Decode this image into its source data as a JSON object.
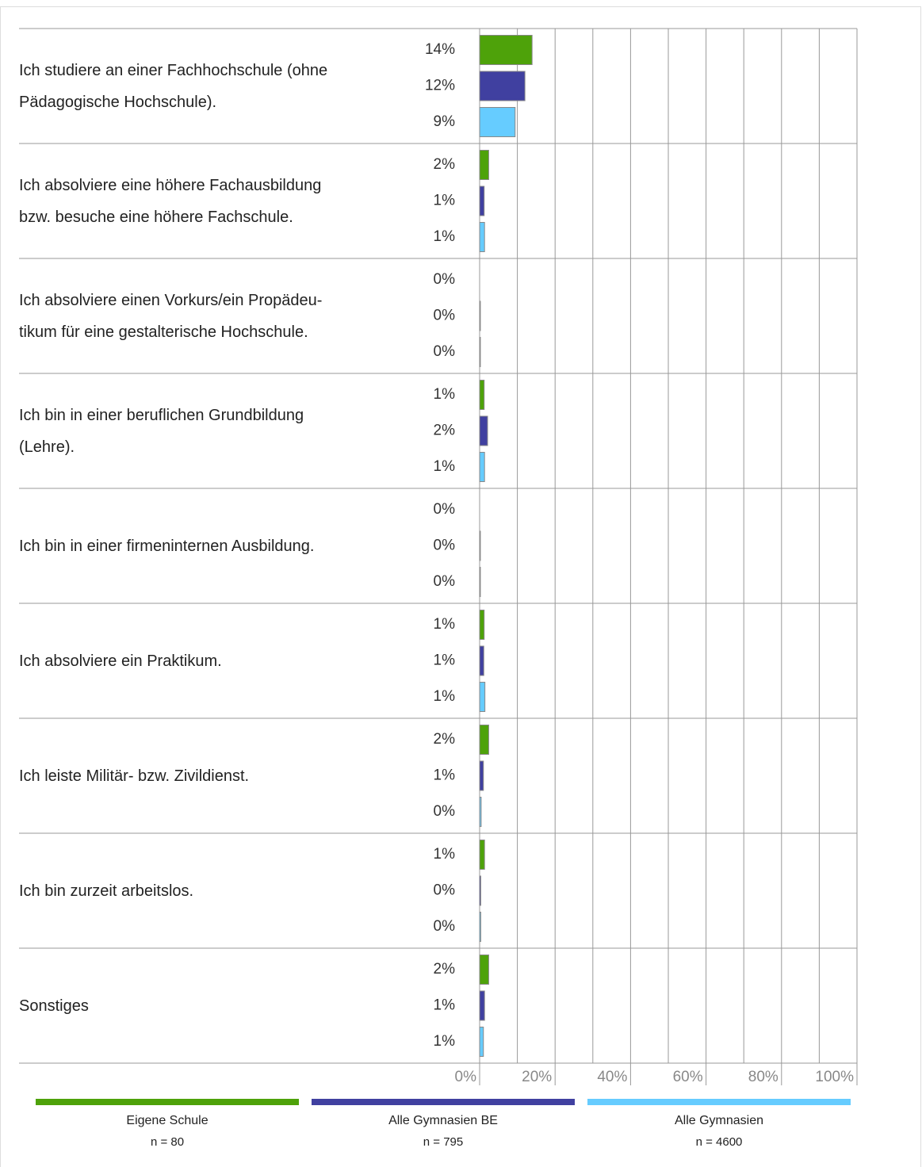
{
  "chart_data": {
    "type": "bar",
    "categories": [
      "Ich studiere an einer Fachhochschule (ohne\nPädagogische Hochschule).",
      "Ich absolviere eine höhere Fachausbildung\nbzw.  besuche eine höhere Fachschule.",
      "Ich absolviere einen Vorkurs/ein Propädeu-\ntikum für eine gestalterische Hochschule.",
      "Ich bin in einer beruflichen Grundbildung\n(Lehre).",
      "Ich bin in einer firmeninternen Ausbildung.",
      "Ich absolviere ein Praktikum.",
      "Ich leiste Militär- bzw.  Zivildienst.",
      "Ich bin zurzeit arbeitslos.",
      "Sonstiges"
    ],
    "series": [
      {
        "name": "Eigene Schule",
        "note": "n = 80",
        "color": "#4ea20a",
        "values": [
          13.9,
          2.4,
          0,
          1.2,
          0,
          1.2,
          2.4,
          1.3,
          2.4
        ],
        "value_labels": [
          "14%",
          "2%",
          "0%",
          "1%",
          "0%",
          "1%",
          "2%",
          "1%",
          "2%"
        ]
      },
      {
        "name": "Alle Gymnasien BE",
        "note": "n = 795",
        "color": "#4040a0",
        "values": [
          12.0,
          1.2,
          0.2,
          2.1,
          0.2,
          1.1,
          1.0,
          0.3,
          1.3
        ],
        "value_labels": [
          "12%",
          "1%",
          "0%",
          "2%",
          "0%",
          "1%",
          "1%",
          "0%",
          "1%"
        ]
      },
      {
        "name": "Alle Gymnasien",
        "note": "n = 4600",
        "color": "#66ccff",
        "values": [
          9.4,
          1.3,
          0.2,
          1.3,
          0.2,
          1.4,
          0.4,
          0.3,
          1.0
        ],
        "value_labels": [
          "9%",
          "1%",
          "0%",
          "1%",
          "0%",
          "1%",
          "0%",
          "0%",
          "1%"
        ]
      }
    ],
    "xlim": [
      0,
      100
    ],
    "xticks": [
      {
        "value": 0,
        "label": "0%"
      },
      {
        "value": 20,
        "label": "20%"
      },
      {
        "value": 40,
        "label": "40%"
      },
      {
        "value": 60,
        "label": "60%"
      },
      {
        "value": 80,
        "label": "80%"
      },
      {
        "value": 100,
        "label": "100%"
      }
    ],
    "grid": true
  }
}
